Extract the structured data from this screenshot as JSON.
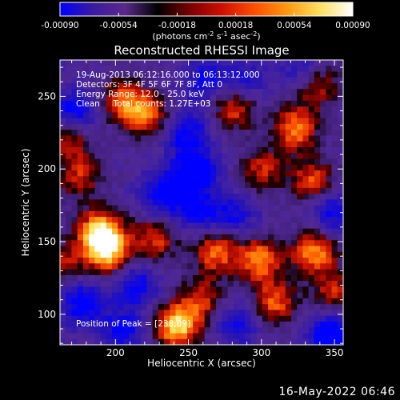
{
  "colorbar": {
    "tick_labels": [
      "-0.00090",
      "-0.00054",
      "-0.00018",
      "0.00018",
      "0.00054",
      "0.00090"
    ],
    "range": [
      -0.0009,
      0.0009
    ],
    "units_parts": [
      "(photons cm",
      "-2",
      " s",
      "-1",
      " asec",
      "-2",
      ")"
    ],
    "colors": [
      "#0000ff",
      "#3a1aa0",
      "#5a2a8a",
      "#000000",
      "#7a0000",
      "#d01000",
      "#ff5000",
      "#ff9a10",
      "#ffe060",
      "#ffffff"
    ]
  },
  "chart_data": {
    "type": "heatmap",
    "title": "Reconstructed RHESSI Image",
    "xlabel": "Heliocentric X (arcsec)",
    "ylabel": "Heliocentric Y (arcsec)",
    "xlim": [
      162,
      356
    ],
    "ylim": [
      79,
      275
    ],
    "x_ticks": [
      200,
      250,
      300,
      350
    ],
    "y_ticks": [
      100,
      150,
      200,
      250
    ],
    "x_tick_labels": [
      "200",
      "250",
      "300",
      "350"
    ],
    "y_tick_labels": [
      "100",
      "150",
      "200",
      "250"
    ],
    "annotations": [
      "19-Aug-2013 06:12:16.000 to 06:13:12.000",
      "Detectors: 3F 4F 5F 6F 7F 8F, Att 0",
      "Energy Range: 12.0 - 25.0 keV",
      "Clean     Total counts: 1.27E+03"
    ],
    "peak_label": "Position of Peak = [",
    "peak_value": "238,89",
    "peak_suffix": "]",
    "hot_spots": [
      {
        "x": 243,
        "y": 92,
        "value": 0.0009
      },
      {
        "x": 190,
        "y": 157,
        "value": 0.00085
      },
      {
        "x": 195,
        "y": 143,
        "value": 0.00075
      },
      {
        "x": 270,
        "y": 143,
        "value": 0.0006
      },
      {
        "x": 300,
        "y": 138,
        "value": 0.00065
      },
      {
        "x": 338,
        "y": 143,
        "value": 0.0007
      },
      {
        "x": 325,
        "y": 228,
        "value": 0.00065
      },
      {
        "x": 283,
        "y": 243,
        "value": 0.0006
      },
      {
        "x": 222,
        "y": 237,
        "value": 0.00055
      },
      {
        "x": 168,
        "y": 224,
        "value": 0.0006
      },
      {
        "x": 205,
        "y": 247,
        "value": 0.0005
      },
      {
        "x": 310,
        "y": 108,
        "value": 0.00055
      },
      {
        "x": 337,
        "y": 192,
        "value": 0.0005
      },
      {
        "x": 228,
        "y": 152,
        "value": 0.00045
      },
      {
        "x": 175,
        "y": 195,
        "value": 0.0004
      },
      {
        "x": 302,
        "y": 200,
        "value": 0.0004
      },
      {
        "x": 340,
        "y": 258,
        "value": 0.00045
      },
      {
        "x": 260,
        "y": 110,
        "value": 0.0004
      },
      {
        "x": 352,
        "y": 115,
        "value": 0.0004
      },
      {
        "x": 165,
        "y": 135,
        "value": 0.0003
      }
    ],
    "cold_spots": [
      {
        "x": 172,
        "y": 237,
        "value": -0.0007
      },
      {
        "x": 255,
        "y": 198,
        "value": -0.0006
      },
      {
        "x": 250,
        "y": 225,
        "value": -0.00045
      },
      {
        "x": 178,
        "y": 108,
        "value": -0.00055
      },
      {
        "x": 205,
        "y": 88,
        "value": -0.0004
      },
      {
        "x": 350,
        "y": 85,
        "value": -0.0007
      },
      {
        "x": 233,
        "y": 182,
        "value": -0.0005
      },
      {
        "x": 258,
        "y": 170,
        "value": -0.0004
      },
      {
        "x": 283,
        "y": 168,
        "value": -0.00035
      },
      {
        "x": 215,
        "y": 120,
        "value": -0.0004
      },
      {
        "x": 288,
        "y": 258,
        "value": -0.0004
      },
      {
        "x": 262,
        "y": 262,
        "value": -0.00035
      },
      {
        "x": 350,
        "y": 170,
        "value": -0.0004
      },
      {
        "x": 330,
        "y": 268,
        "value": -0.0003
      },
      {
        "x": 285,
        "y": 93,
        "value": -0.00035
      }
    ]
  },
  "date_stamp": "16-May-2022 06:46"
}
